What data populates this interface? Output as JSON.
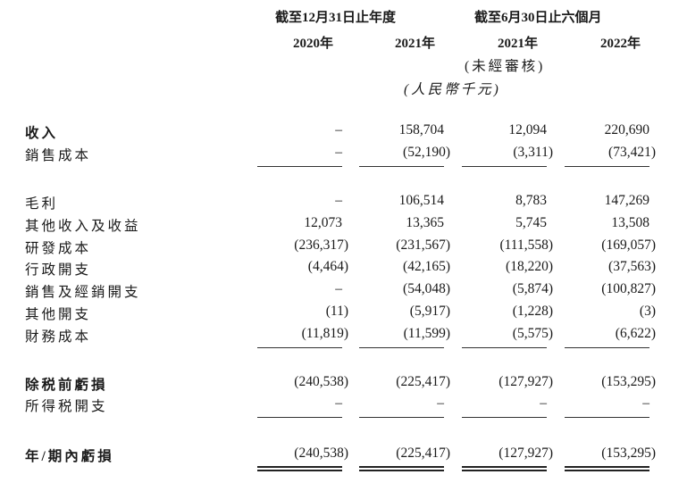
{
  "header": {
    "group1": "截至12月31日止年度",
    "group2": "截至6月30日止六個月",
    "columns": [
      "2020年",
      "2021年",
      "2021年",
      "2022年"
    ],
    "unaudited_note": "(未經審核)",
    "unit_note": "(人民幣千元)"
  },
  "rows": [
    {
      "label": "收入",
      "bold": true,
      "values": [
        "–",
        "158,704",
        "12,094",
        "220,690"
      ]
    },
    {
      "label": "銷售成本",
      "bold": false,
      "values": [
        "–",
        "(52,190)",
        "(3,311)",
        "(73,421)"
      ]
    },
    {
      "label": "毛利",
      "bold": false,
      "values": [
        "–",
        "106,514",
        "8,783",
        "147,269"
      ]
    },
    {
      "label": "其他收入及收益",
      "bold": false,
      "values": [
        "12,073",
        "13,365",
        "5,745",
        "13,508"
      ]
    },
    {
      "label": "研發成本",
      "bold": false,
      "values": [
        "(236,317)",
        "(231,567)",
        "(111,558)",
        "(169,057)"
      ]
    },
    {
      "label": "行政開支",
      "bold": false,
      "values": [
        "(4,464)",
        "(42,165)",
        "(18,220)",
        "(37,563)"
      ]
    },
    {
      "label": "銷售及經銷開支",
      "bold": false,
      "values": [
        "–",
        "(54,048)",
        "(5,874)",
        "(100,827)"
      ]
    },
    {
      "label": "其他開支",
      "bold": false,
      "values": [
        "(11)",
        "(5,917)",
        "(1,228)",
        "(3)"
      ]
    },
    {
      "label": "財務成本",
      "bold": false,
      "values": [
        "(11,819)",
        "(11,599)",
        "(5,575)",
        "(6,622)"
      ]
    },
    {
      "label": "除税前虧損",
      "bold": true,
      "values": [
        "(240,538)",
        "(225,417)",
        "(127,927)",
        "(153,295)"
      ]
    },
    {
      "label": "所得税開支",
      "bold": false,
      "values": [
        "–",
        "–",
        "–",
        "–"
      ]
    },
    {
      "label": "年/期內虧損",
      "bold": true,
      "values": [
        "(240,538)",
        "(225,417)",
        "(127,927)",
        "(153,295)"
      ]
    }
  ]
}
